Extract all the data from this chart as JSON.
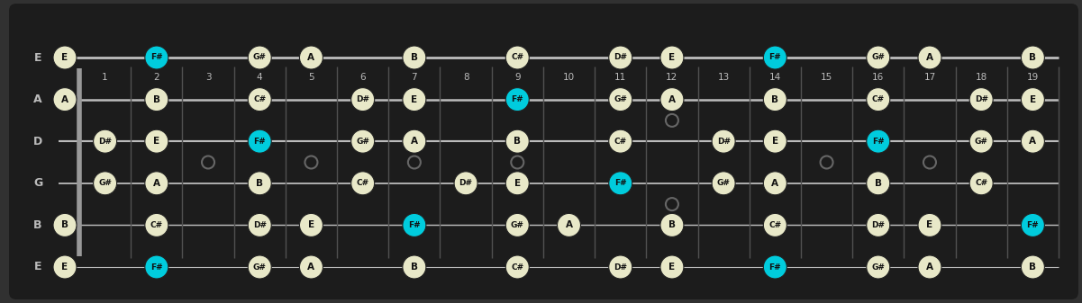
{
  "bg_color": "#313131",
  "board_color": "#1c1c1c",
  "string_color": "#bbbbbb",
  "fret_color": "#555555",
  "nut_color": "#888888",
  "note_color": "#e8e8c8",
  "root_color": "#00ccdd",
  "text_color": "#111111",
  "label_color": "#bbbbbb",
  "marker_color": "#666666",
  "string_labels": [
    "E",
    "B",
    "G",
    "D",
    "A",
    "E"
  ],
  "num_frets": 19,
  "fret_markers": [
    3,
    5,
    7,
    9,
    15,
    17
  ],
  "fret_markers_double": [
    12
  ],
  "notes": [
    {
      "string": 0,
      "fret": 0,
      "note": "E",
      "root": false
    },
    {
      "string": 0,
      "fret": 2,
      "note": "F#",
      "root": true
    },
    {
      "string": 0,
      "fret": 4,
      "note": "G#",
      "root": false
    },
    {
      "string": 0,
      "fret": 5,
      "note": "A",
      "root": false
    },
    {
      "string": 0,
      "fret": 7,
      "note": "B",
      "root": false
    },
    {
      "string": 0,
      "fret": 9,
      "note": "C#",
      "root": false
    },
    {
      "string": 0,
      "fret": 11,
      "note": "D#",
      "root": false
    },
    {
      "string": 0,
      "fret": 12,
      "note": "E",
      "root": false
    },
    {
      "string": 0,
      "fret": 14,
      "note": "F#",
      "root": true
    },
    {
      "string": 0,
      "fret": 16,
      "note": "G#",
      "root": false
    },
    {
      "string": 0,
      "fret": 17,
      "note": "A",
      "root": false
    },
    {
      "string": 0,
      "fret": 19,
      "note": "B",
      "root": false
    },
    {
      "string": 1,
      "fret": 0,
      "note": "B",
      "root": false
    },
    {
      "string": 1,
      "fret": 2,
      "note": "C#",
      "root": false
    },
    {
      "string": 1,
      "fret": 4,
      "note": "D#",
      "root": false
    },
    {
      "string": 1,
      "fret": 5,
      "note": "E",
      "root": false
    },
    {
      "string": 1,
      "fret": 7,
      "note": "F#",
      "root": true
    },
    {
      "string": 1,
      "fret": 9,
      "note": "G#",
      "root": false
    },
    {
      "string": 1,
      "fret": 10,
      "note": "A",
      "root": false
    },
    {
      "string": 1,
      "fret": 12,
      "note": "B",
      "root": false
    },
    {
      "string": 1,
      "fret": 14,
      "note": "C#",
      "root": false
    },
    {
      "string": 1,
      "fret": 16,
      "note": "D#",
      "root": false
    },
    {
      "string": 1,
      "fret": 17,
      "note": "E",
      "root": false
    },
    {
      "string": 1,
      "fret": 19,
      "note": "F#",
      "root": true
    },
    {
      "string": 2,
      "fret": 1,
      "note": "G#",
      "root": false
    },
    {
      "string": 2,
      "fret": 2,
      "note": "A",
      "root": false
    },
    {
      "string": 2,
      "fret": 4,
      "note": "B",
      "root": false
    },
    {
      "string": 2,
      "fret": 6,
      "note": "C#",
      "root": false
    },
    {
      "string": 2,
      "fret": 8,
      "note": "D#",
      "root": false
    },
    {
      "string": 2,
      "fret": 9,
      "note": "E",
      "root": false
    },
    {
      "string": 2,
      "fret": 11,
      "note": "F#",
      "root": true
    },
    {
      "string": 2,
      "fret": 13,
      "note": "G#",
      "root": false
    },
    {
      "string": 2,
      "fret": 14,
      "note": "A",
      "root": false
    },
    {
      "string": 2,
      "fret": 16,
      "note": "B",
      "root": false
    },
    {
      "string": 2,
      "fret": 18,
      "note": "C#",
      "root": false
    },
    {
      "string": 3,
      "fret": 1,
      "note": "D#",
      "root": false
    },
    {
      "string": 3,
      "fret": 2,
      "note": "E",
      "root": false
    },
    {
      "string": 3,
      "fret": 4,
      "note": "F#",
      "root": true
    },
    {
      "string": 3,
      "fret": 6,
      "note": "G#",
      "root": false
    },
    {
      "string": 3,
      "fret": 7,
      "note": "A",
      "root": false
    },
    {
      "string": 3,
      "fret": 9,
      "note": "B",
      "root": false
    },
    {
      "string": 3,
      "fret": 11,
      "note": "C#",
      "root": false
    },
    {
      "string": 3,
      "fret": 13,
      "note": "D#",
      "root": false
    },
    {
      "string": 3,
      "fret": 14,
      "note": "E",
      "root": false
    },
    {
      "string": 3,
      "fret": 16,
      "note": "F#",
      "root": true
    },
    {
      "string": 3,
      "fret": 18,
      "note": "G#",
      "root": false
    },
    {
      "string": 3,
      "fret": 19,
      "note": "A",
      "root": false
    },
    {
      "string": 4,
      "fret": 0,
      "note": "A",
      "root": false
    },
    {
      "string": 4,
      "fret": 2,
      "note": "B",
      "root": false
    },
    {
      "string": 4,
      "fret": 4,
      "note": "C#",
      "root": false
    },
    {
      "string": 4,
      "fret": 6,
      "note": "D#",
      "root": false
    },
    {
      "string": 4,
      "fret": 7,
      "note": "E",
      "root": false
    },
    {
      "string": 4,
      "fret": 9,
      "note": "F#",
      "root": true
    },
    {
      "string": 4,
      "fret": 11,
      "note": "G#",
      "root": false
    },
    {
      "string": 4,
      "fret": 12,
      "note": "A",
      "root": false
    },
    {
      "string": 4,
      "fret": 14,
      "note": "B",
      "root": false
    },
    {
      "string": 4,
      "fret": 16,
      "note": "C#",
      "root": false
    },
    {
      "string": 4,
      "fret": 18,
      "note": "D#",
      "root": false
    },
    {
      "string": 4,
      "fret": 19,
      "note": "E",
      "root": false
    },
    {
      "string": 5,
      "fret": 0,
      "note": "E",
      "root": false
    },
    {
      "string": 5,
      "fret": 2,
      "note": "F#",
      "root": true
    },
    {
      "string": 5,
      "fret": 4,
      "note": "G#",
      "root": false
    },
    {
      "string": 5,
      "fret": 5,
      "note": "A",
      "root": false
    },
    {
      "string": 5,
      "fret": 7,
      "note": "B",
      "root": false
    },
    {
      "string": 5,
      "fret": 9,
      "note": "C#",
      "root": false
    },
    {
      "string": 5,
      "fret": 11,
      "note": "D#",
      "root": false
    },
    {
      "string": 5,
      "fret": 12,
      "note": "E",
      "root": false
    },
    {
      "string": 5,
      "fret": 14,
      "note": "F#",
      "root": true
    },
    {
      "string": 5,
      "fret": 16,
      "note": "G#",
      "root": false
    },
    {
      "string": 5,
      "fret": 17,
      "note": "A",
      "root": false
    },
    {
      "string": 5,
      "fret": 19,
      "note": "B",
      "root": false
    }
  ]
}
